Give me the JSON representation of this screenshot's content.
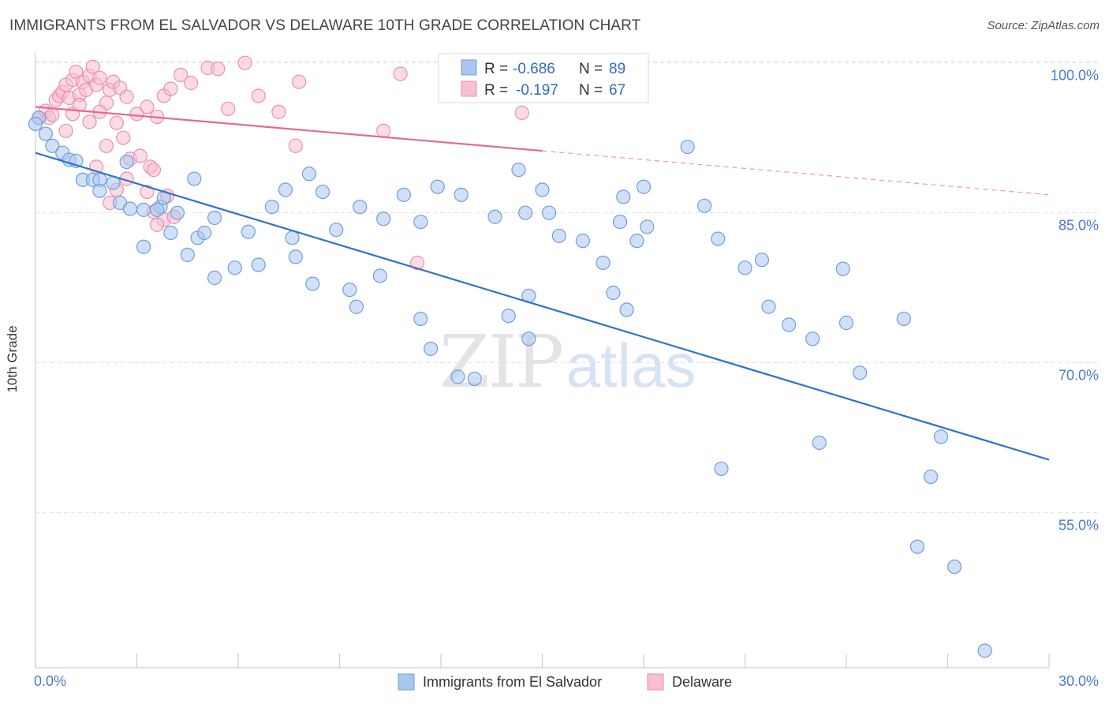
{
  "title": "IMMIGRANTS FROM EL SALVADOR VS DELAWARE 10TH GRADE CORRELATION CHART",
  "source": "Source: ZipAtlas.com",
  "watermark": {
    "zip": "ZIP",
    "atlas": "atlas"
  },
  "legend": {
    "r_label": "R =",
    "n_label": "N =",
    "blue": {
      "r": "-0.686",
      "n": "89"
    },
    "pink": {
      "r": "-0.197",
      "n": "67"
    }
  },
  "colors": {
    "blue_fill": "#a9c6ef",
    "blue_stroke": "#6f9ee0",
    "blue_line": "#2f72d0",
    "pink_fill": "#f7bfd0",
    "pink_stroke": "#eb8fae",
    "pink_line": "#e46a92",
    "tick_text": "#4a7bd1",
    "grid": "#dde1e8"
  },
  "chart_data": {
    "type": "scatter",
    "title": "IMMIGRANTS FROM EL SALVADOR VS DELAWARE 10TH GRADE CORRELATION CHART",
    "xlabel": "",
    "ylabel": "10th Grade",
    "xlim": [
      0,
      30
    ],
    "ylim": [
      39.5,
      101
    ],
    "x_tick_labels": [
      "0.0%",
      "30.0%"
    ],
    "y_ticks": [
      100,
      85,
      70,
      55
    ],
    "y_tick_labels": [
      "100.0%",
      "85.0%",
      "70.0%",
      "55.0%"
    ],
    "grid": true,
    "legend_position": "bottom",
    "series": [
      {
        "name": "Immigrants from El Salvador",
        "color": "blue",
        "r": -0.686,
        "n": 89,
        "trend": {
          "x": [
            0,
            30
          ],
          "y": [
            91.0,
            60.3
          ]
        },
        "points": [
          [
            0.1,
            94.5
          ],
          [
            0.3,
            92.9
          ],
          [
            0.5,
            91.7
          ],
          [
            0.8,
            91.0
          ],
          [
            1.0,
            90.3
          ],
          [
            1.2,
            90.2
          ],
          [
            1.4,
            88.3
          ],
          [
            1.7,
            88.3
          ],
          [
            1.9,
            88.3
          ],
          [
            2.3,
            88.0
          ],
          [
            1.9,
            87.2
          ],
          [
            2.5,
            86.0
          ],
          [
            2.8,
            85.4
          ],
          [
            3.2,
            85.3
          ],
          [
            3.7,
            85.6
          ],
          [
            3.8,
            86.5
          ],
          [
            2.7,
            90.1
          ],
          [
            4.2,
            85.0
          ],
          [
            5.3,
            84.5
          ],
          [
            6.3,
            83.1
          ],
          [
            7.0,
            85.6
          ],
          [
            7.4,
            87.3
          ],
          [
            8.1,
            88.9
          ],
          [
            8.5,
            87.1
          ],
          [
            8.9,
            83.3
          ],
          [
            9.6,
            85.6
          ],
          [
            10.3,
            84.4
          ],
          [
            10.9,
            86.8
          ],
          [
            11.4,
            84.1
          ],
          [
            11.9,
            87.6
          ],
          [
            12.6,
            86.8
          ],
          [
            13.6,
            84.6
          ],
          [
            14.5,
            85.0
          ],
          [
            14.3,
            89.3
          ],
          [
            15.0,
            87.3
          ],
          [
            15.2,
            85.0
          ],
          [
            15.5,
            82.7
          ],
          [
            16.2,
            82.2
          ],
          [
            17.4,
            86.6
          ],
          [
            17.3,
            84.1
          ],
          [
            17.8,
            82.2
          ],
          [
            18.0,
            87.6
          ],
          [
            4.8,
            82.5
          ],
          [
            5.0,
            83.0
          ],
          [
            4.7,
            88.4
          ],
          [
            3.6,
            85.3
          ],
          [
            3.2,
            81.6
          ],
          [
            4.0,
            83.0
          ],
          [
            4.5,
            80.8
          ],
          [
            5.3,
            78.5
          ],
          [
            5.9,
            79.5
          ],
          [
            6.6,
            79.8
          ],
          [
            7.6,
            82.5
          ],
          [
            7.7,
            80.6
          ],
          [
            8.2,
            77.9
          ],
          [
            9.3,
            77.3
          ],
          [
            9.5,
            75.6
          ],
          [
            10.2,
            78.7
          ],
          [
            11.4,
            74.4
          ],
          [
            11.7,
            71.4
          ],
          [
            12.5,
            68.6
          ],
          [
            13.0,
            68.4
          ],
          [
            14.6,
            72.4
          ],
          [
            14.6,
            76.7
          ],
          [
            14.0,
            74.7
          ],
          [
            17.1,
            77.0
          ],
          [
            17.5,
            75.3
          ],
          [
            18.1,
            83.6
          ],
          [
            16.8,
            80.0
          ],
          [
            19.3,
            91.6
          ],
          [
            19.8,
            85.7
          ],
          [
            20.2,
            82.4
          ],
          [
            21.5,
            80.3
          ],
          [
            21.0,
            79.5
          ],
          [
            21.7,
            75.6
          ],
          [
            22.3,
            73.8
          ],
          [
            23.9,
            79.4
          ],
          [
            23.0,
            72.4
          ],
          [
            24.0,
            74.0
          ],
          [
            24.4,
            69.0
          ],
          [
            25.7,
            74.4
          ],
          [
            20.3,
            59.4
          ],
          [
            23.2,
            62.0
          ],
          [
            26.8,
            62.6
          ],
          [
            26.5,
            58.6
          ],
          [
            26.1,
            51.6
          ],
          [
            27.2,
            49.6
          ],
          [
            28.1,
            41.2
          ],
          [
            0.0,
            93.9
          ]
        ]
      },
      {
        "name": "Delaware",
        "color": "pink",
        "r": -0.197,
        "n": 67,
        "trend": {
          "x": [
            0,
            15
          ],
          "y": [
            95.6,
            91.2
          ]
        },
        "trend_extension": {
          "x": [
            15,
            30
          ],
          "y": [
            91.2,
            86.8
          ]
        },
        "points": [
          [
            0.1,
            94.5
          ],
          [
            0.3,
            95.2
          ],
          [
            0.4,
            94.5
          ],
          [
            0.5,
            94.8
          ],
          [
            0.6,
            96.3
          ],
          [
            0.7,
            96.7
          ],
          [
            0.8,
            97.1
          ],
          [
            0.9,
            97.8
          ],
          [
            1.0,
            96.5
          ],
          [
            1.1,
            98.3
          ],
          [
            1.2,
            99.1
          ],
          [
            1.3,
            96.8
          ],
          [
            1.4,
            98.1
          ],
          [
            1.5,
            97.3
          ],
          [
            1.6,
            98.7
          ],
          [
            1.7,
            99.6
          ],
          [
            1.8,
            97.8
          ],
          [
            1.9,
            98.5
          ],
          [
            2.1,
            96.0
          ],
          [
            2.2,
            97.3
          ],
          [
            2.3,
            98.1
          ],
          [
            2.5,
            97.5
          ],
          [
            2.7,
            96.6
          ],
          [
            3.0,
            94.9
          ],
          [
            3.3,
            95.6
          ],
          [
            3.6,
            94.6
          ],
          [
            3.8,
            96.7
          ],
          [
            4.0,
            97.4
          ],
          [
            4.3,
            98.8
          ],
          [
            4.6,
            98.0
          ],
          [
            5.1,
            99.5
          ],
          [
            5.4,
            99.4
          ],
          [
            5.7,
            95.4
          ],
          [
            6.2,
            100.0
          ],
          [
            6.6,
            96.7
          ],
          [
            2.4,
            94.0
          ],
          [
            2.6,
            92.5
          ],
          [
            0.9,
            93.2
          ],
          [
            1.1,
            94.9
          ],
          [
            1.3,
            95.8
          ],
          [
            1.6,
            94.1
          ],
          [
            1.9,
            95.1
          ],
          [
            2.1,
            91.7
          ],
          [
            1.8,
            89.6
          ],
          [
            2.2,
            86.0
          ],
          [
            2.4,
            87.3
          ],
          [
            2.7,
            88.4
          ],
          [
            3.3,
            87.1
          ],
          [
            3.5,
            85.1
          ],
          [
            3.8,
            84.3
          ],
          [
            4.1,
            84.6
          ],
          [
            3.9,
            86.7
          ],
          [
            2.8,
            90.4
          ],
          [
            3.1,
            90.7
          ],
          [
            3.4,
            89.6
          ],
          [
            3.5,
            89.3
          ],
          [
            3.6,
            83.8
          ],
          [
            7.2,
            95.1
          ],
          [
            7.7,
            91.7
          ],
          [
            7.8,
            98.1
          ],
          [
            10.3,
            93.2
          ],
          [
            10.8,
            98.9
          ],
          [
            12.4,
            99.9
          ],
          [
            12.8,
            99.2
          ],
          [
            13.7,
            97.8
          ],
          [
            14.4,
            95.0
          ],
          [
            11.3,
            80.0
          ]
        ]
      }
    ]
  }
}
